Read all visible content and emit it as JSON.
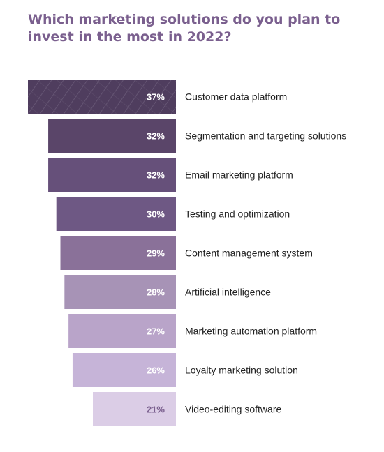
{
  "title": "Which marketing solutions do you plan to invest in the most in 2022?",
  "chart_data": {
    "type": "bar",
    "orientation": "horizontal",
    "title": "Which marketing solutions do you plan to invest in the most in 2022?",
    "categories": [
      "Customer data platform",
      "Segmentation and targeting solutions",
      "Email marketing platform",
      "Testing and optimization",
      "Content management system",
      "Artificial intelligence",
      "Marketing automation platform",
      "Loyalty marketing solution",
      "Video-editing software"
    ],
    "values": [
      37,
      32,
      32,
      30,
      29,
      28,
      27,
      26,
      21
    ],
    "value_labels": [
      "37%",
      "32%",
      "32%",
      "30%",
      "29%",
      "28%",
      "27%",
      "26%",
      "21%"
    ],
    "bar_colors": [
      "#4f3d5e",
      "#5a4569",
      "#66507a",
      "#6e5884",
      "#8a7199",
      "#a793b6",
      "#b9a4c9",
      "#c6b4d8",
      "#dbcde6"
    ],
    "label_colors": [
      "#ffffff",
      "#ffffff",
      "#ffffff",
      "#ffffff",
      "#ffffff",
      "#ffffff",
      "#ffffff",
      "#ffffff",
      "#7a5f8e"
    ],
    "grid": false,
    "legend": "none"
  }
}
